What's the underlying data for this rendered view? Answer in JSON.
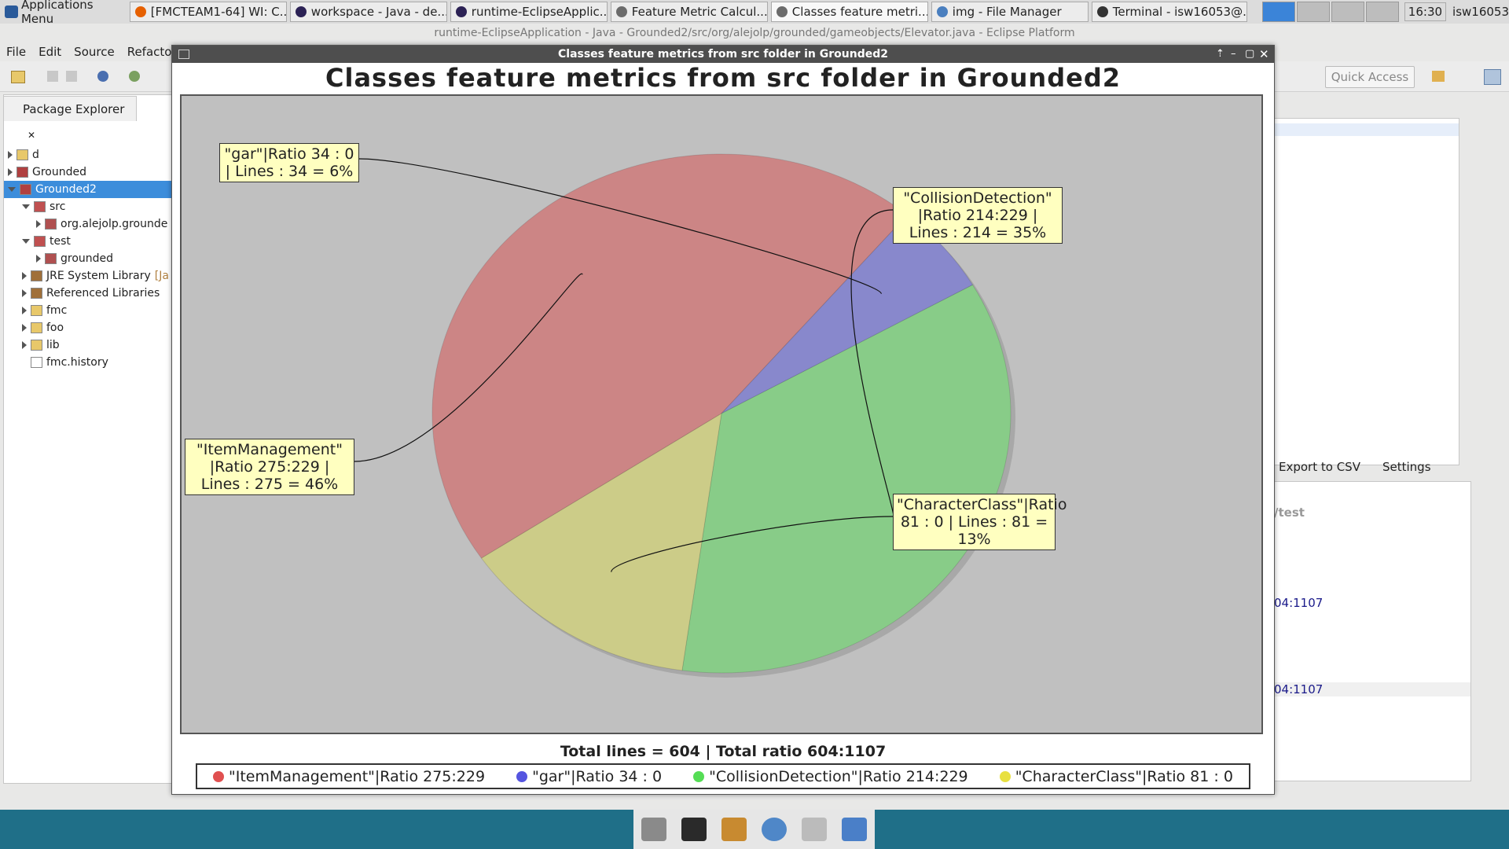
{
  "taskbar": {
    "app_menu": "Applications Menu",
    "tasks": [
      {
        "label": "[FMCTEAM1-64] WI: C...",
        "color": "#e66000"
      },
      {
        "label": "workspace - Java - de...",
        "color": "#2c2255"
      },
      {
        "label": "runtime-EclipseApplic...",
        "color": "#2c2255"
      },
      {
        "label": "Feature Metric Calcul...",
        "color": "#6b6b6b"
      },
      {
        "label": "Classes feature metri...",
        "color": "#6b6b6b"
      },
      {
        "label": "img - File Manager",
        "color": "#4a7fbf"
      },
      {
        "label": "Terminal - isw16053@...",
        "color": "#333333"
      }
    ],
    "clock": "16:30",
    "user": "isw16053"
  },
  "window": {
    "title": "runtime-EclipseApplication - Java - Grounded2/src/org/alejolp/grounded/gameobjects/Elevator.java - Eclipse Platform",
    "menu": [
      "File",
      "Edit",
      "Source",
      "Refactor"
    ],
    "quick_access": "Quick Access"
  },
  "package_explorer": {
    "tab": "Package Explorer",
    "items": [
      {
        "label": "d",
        "indent": 0,
        "open": false,
        "kind": "folder"
      },
      {
        "label": "Grounded",
        "indent": 0,
        "open": false,
        "kind": "project"
      },
      {
        "label": "Grounded2",
        "indent": 0,
        "open": true,
        "kind": "project",
        "selected": true
      },
      {
        "label": "src",
        "indent": 1,
        "open": true,
        "kind": "srcfolder"
      },
      {
        "label": "org.alejolp.grounde",
        "indent": 2,
        "open": false,
        "kind": "package"
      },
      {
        "label": "test",
        "indent": 1,
        "open": true,
        "kind": "srcfolder"
      },
      {
        "label": "grounded",
        "indent": 2,
        "open": false,
        "kind": "package"
      },
      {
        "label": "JRE System Library",
        "suffix": "[Ja",
        "indent": 1,
        "open": false,
        "kind": "library"
      },
      {
        "label": "Referenced Libraries",
        "indent": 1,
        "open": false,
        "kind": "library"
      },
      {
        "label": "fmc",
        "indent": 1,
        "open": false,
        "kind": "folder"
      },
      {
        "label": "foo",
        "indent": 1,
        "open": false,
        "kind": "folder"
      },
      {
        "label": "lib",
        "indent": 1,
        "open": false,
        "kind": "folder"
      },
      {
        "label": "fmc.history",
        "indent": 1,
        "open": null,
        "kind": "file"
      }
    ]
  },
  "right_panel": {
    "export": "Export to CSV",
    "settings": "Settings",
    "path": "/test",
    "value1": "04:1107",
    "value2": "04:1107"
  },
  "dialog": {
    "title": "Classes feature metrics from src folder in  Grounded2"
  },
  "chart_data": {
    "type": "pie",
    "title": "Classes feature metrics from src folder in  Grounded2",
    "slices": [
      {
        "name": "\"ItemManagement\"",
        "ratio": "275:229",
        "lines": 275,
        "percent": 46,
        "color": "#cc8585",
        "label": "\"ItemManagement\" |Ratio 275:229  | Lines : 275 = 46%",
        "legend": "\"ItemManagement\"|Ratio 275:229"
      },
      {
        "name": "\"gar\"",
        "ratio": "34 : 0",
        "lines": 34,
        "percent": 6,
        "color": "#8888cc",
        "label": "\"gar\"|Ratio 34 : 0  | Lines : 34 = 6%",
        "legend": "\"gar\"|Ratio 34 : 0"
      },
      {
        "name": "\"CollisionDetection\"",
        "ratio": "214:229",
        "lines": 214,
        "percent": 35,
        "color": "#88cc88",
        "label": "\"CollisionDetection\" |Ratio 214:229  | Lines : 214 = 35%",
        "legend": "\"CollisionDetection\"|Ratio 214:229"
      },
      {
        "name": "\"CharacterClass\"",
        "ratio": "81 : 0",
        "lines": 81,
        "percent": 13,
        "color": "#cccc88",
        "label": "\"CharacterClass\"|Ratio 81 : 0  | Lines : 81 = 13%",
        "legend": "\"CharacterClass\"|Ratio 81 : 0"
      }
    ],
    "totals": "Total lines = 604 | Total ratio 604:1107",
    "legend_position": "bottom"
  }
}
